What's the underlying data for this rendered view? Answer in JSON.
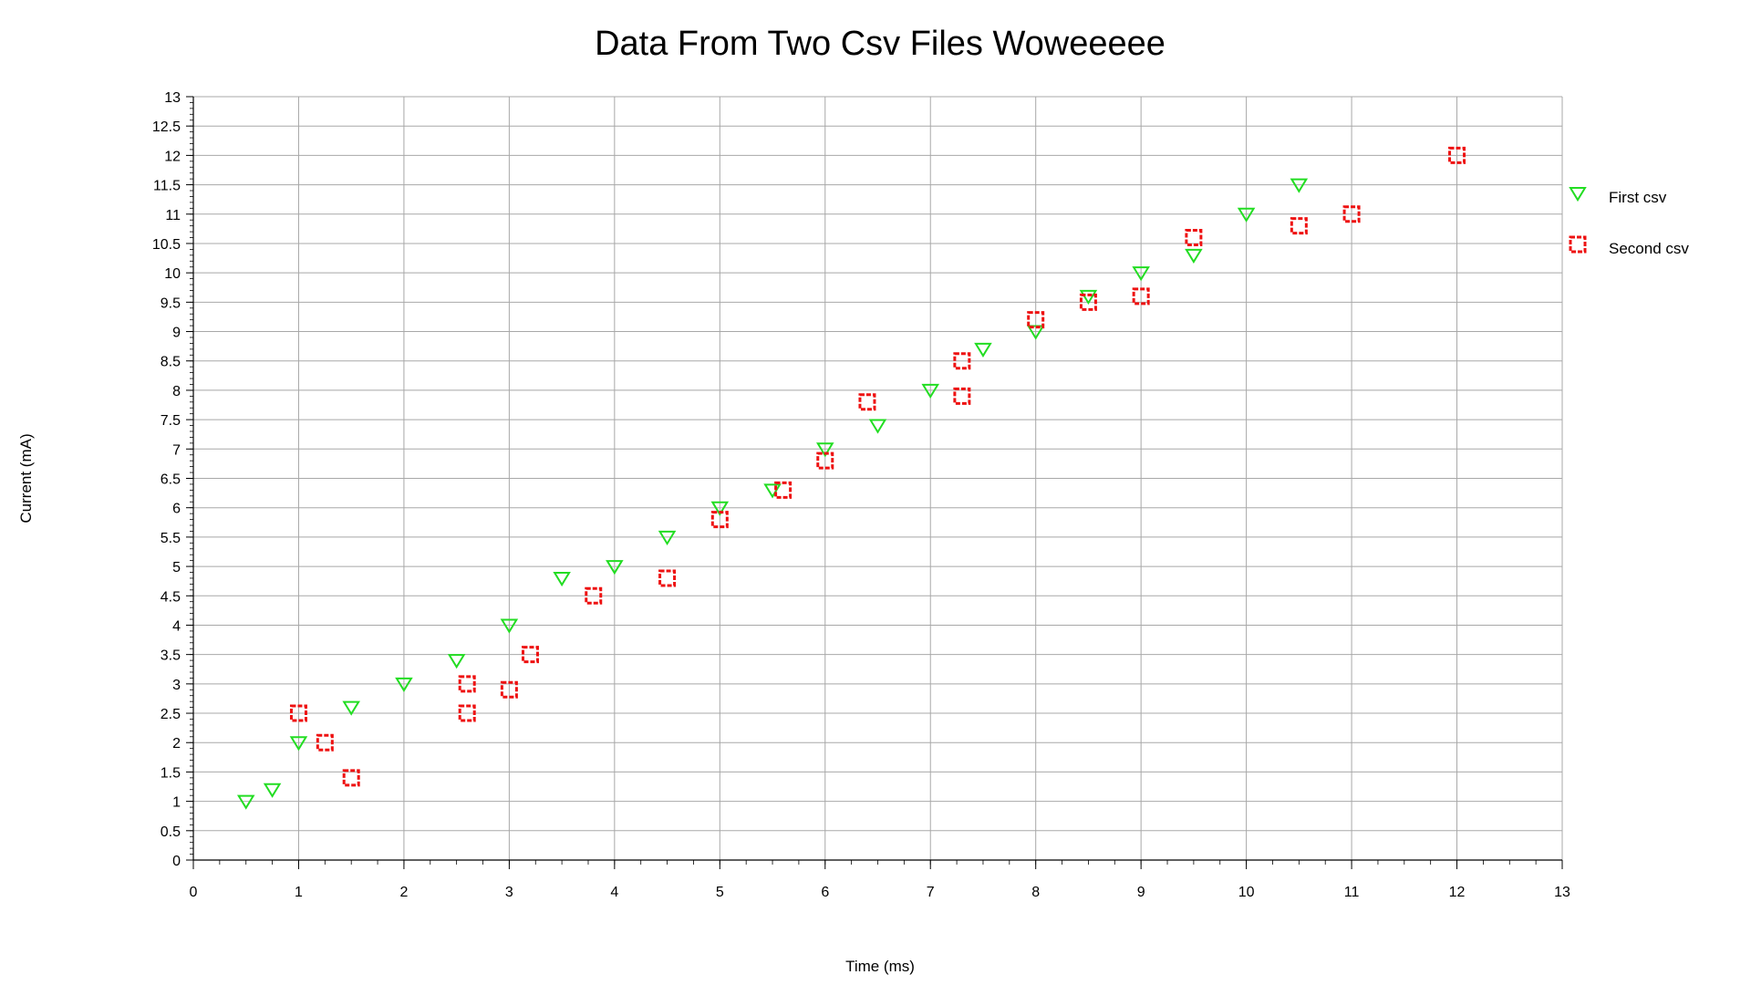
{
  "chart_data": {
    "type": "scatter",
    "title": "Data From Two Csv Files Woweeeee",
    "xlabel": "Time (ms)",
    "ylabel": "Current (mA)",
    "xlim": [
      0,
      13
    ],
    "ylim": [
      0,
      13
    ],
    "x_ticks": [
      0,
      1,
      2,
      3,
      4,
      5,
      6,
      7,
      8,
      9,
      10,
      11,
      12,
      13
    ],
    "y_ticks": [
      0,
      0.5,
      1,
      1.5,
      2,
      2.5,
      3,
      3.5,
      4,
      4.5,
      5,
      5.5,
      6,
      6.5,
      7,
      7.5,
      8,
      8.5,
      9,
      9.5,
      10,
      10.5,
      11,
      11.5,
      12,
      12.5,
      13
    ],
    "grid": true,
    "legend_position": "right",
    "series": [
      {
        "name": "First csv",
        "marker": "triangle-down",
        "color": "#22dd22",
        "points": [
          [
            0.5,
            1.0
          ],
          [
            0.75,
            1.2
          ],
          [
            1.0,
            2.0
          ],
          [
            1.5,
            2.6
          ],
          [
            2.0,
            3.0
          ],
          [
            2.5,
            3.4
          ],
          [
            3.0,
            4.0
          ],
          [
            3.5,
            4.8
          ],
          [
            4.0,
            5.0
          ],
          [
            4.5,
            5.5
          ],
          [
            5.0,
            6.0
          ],
          [
            5.5,
            6.3
          ],
          [
            6.0,
            7.0
          ],
          [
            6.5,
            7.4
          ],
          [
            7.0,
            8.0
          ],
          [
            7.5,
            8.7
          ],
          [
            8.0,
            9.0
          ],
          [
            8.5,
            9.6
          ],
          [
            9.0,
            10.0
          ],
          [
            9.5,
            10.3
          ],
          [
            10.0,
            11.0
          ],
          [
            10.5,
            11.5
          ]
        ]
      },
      {
        "name": "Second csv",
        "marker": "square",
        "color": "#ee1111",
        "points": [
          [
            1.0,
            2.5
          ],
          [
            1.25,
            2.0
          ],
          [
            1.5,
            1.4
          ],
          [
            2.6,
            3.0
          ],
          [
            2.6,
            2.5
          ],
          [
            3.0,
            2.9
          ],
          [
            3.2,
            3.5
          ],
          [
            3.8,
            4.5
          ],
          [
            4.5,
            4.8
          ],
          [
            5.0,
            5.8
          ],
          [
            5.6,
            6.3
          ],
          [
            6.0,
            6.8
          ],
          [
            6.4,
            7.8
          ],
          [
            7.3,
            8.5
          ],
          [
            7.3,
            7.9
          ],
          [
            8.0,
            9.2
          ],
          [
            8.5,
            9.5
          ],
          [
            9.0,
            9.6
          ],
          [
            9.5,
            10.6
          ],
          [
            10.5,
            10.8
          ],
          [
            11.0,
            11.0
          ],
          [
            12.0,
            12.0
          ]
        ]
      }
    ]
  }
}
